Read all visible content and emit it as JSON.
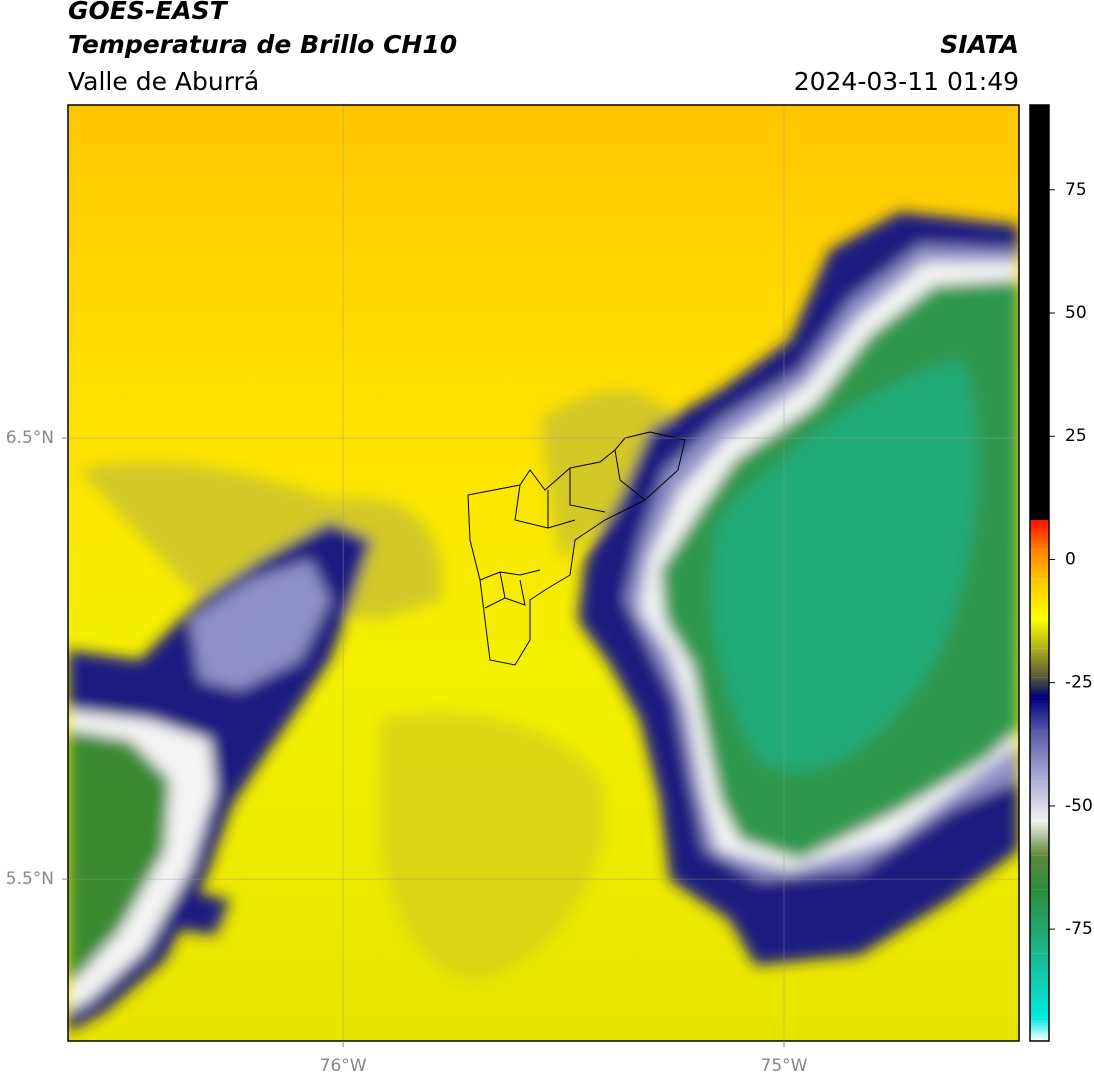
{
  "header": {
    "title": "GOES-EAST",
    "subtitle": "Temperatura de Brillo CH10",
    "region": "Valle de Aburrá",
    "source": "SIATA",
    "datetime": "2024-03-11 01:49"
  },
  "map": {
    "xlim": [
      -76.624,
      -74.467
    ],
    "ylim": [
      5.133,
      7.255
    ],
    "xticks": [
      {
        "value": -76,
        "label": "76°W"
      },
      {
        "value": -75,
        "label": "75°W"
      }
    ],
    "yticks": [
      {
        "value": 6.5,
        "label": "6.5°N"
      },
      {
        "value": 5.5,
        "label": "5.5°N"
      }
    ],
    "grid": true
  },
  "colorbar": {
    "lim": [
      -97.7,
      92.2
    ],
    "ticks": [
      75,
      50,
      25,
      0,
      -25,
      -50,
      -75
    ],
    "colormap": [
      {
        "value": -97.7,
        "color": "#ffffff"
      },
      {
        "value": -93,
        "color": "#00e8e0"
      },
      {
        "value": -80,
        "color": "#1ab98f"
      },
      {
        "value": -67,
        "color": "#2e8b3e"
      },
      {
        "value": -60,
        "color": "#5e8a3a"
      },
      {
        "value": -53,
        "color": "#f2f2f2"
      },
      {
        "value": -45,
        "color": "#b0b0d8"
      },
      {
        "value": -35,
        "color": "#5a5aa8"
      },
      {
        "value": -28,
        "color": "#000080"
      },
      {
        "value": -24,
        "color": "#55553a"
      },
      {
        "value": -18,
        "color": "#b0b020"
      },
      {
        "value": -12,
        "color": "#ffff00"
      },
      {
        "value": -4,
        "color": "#ffc400"
      },
      {
        "value": 2,
        "color": "#ff8000"
      },
      {
        "value": 8,
        "color": "#ff1000"
      },
      {
        "value": 8.01,
        "color": "#000000"
      }
    ]
  }
}
